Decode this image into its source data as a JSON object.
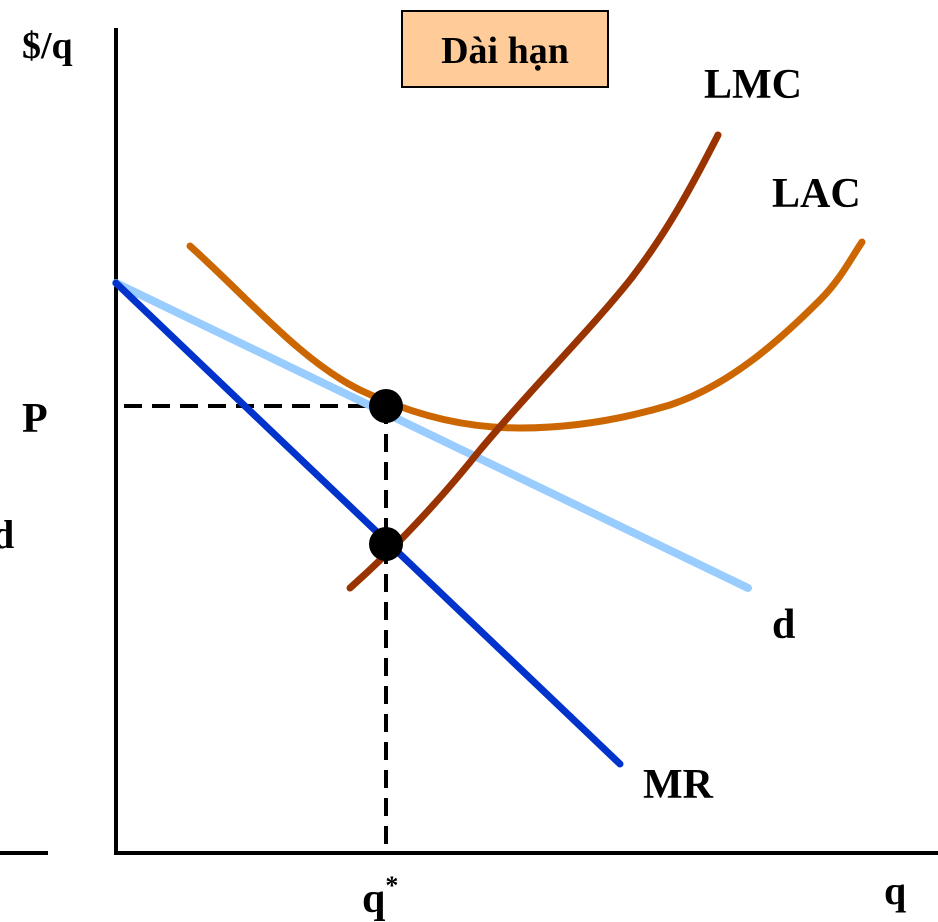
{
  "title": "Dài hạn",
  "labels": {
    "y_axis": "$/q",
    "x_axis": "q",
    "price": "P",
    "quantity": "q",
    "quantity_superscript": "*",
    "lmc": "LMC",
    "lac": "LAC",
    "demand": "d",
    "mr": "MR",
    "left_partial_d": "d"
  },
  "colors": {
    "background": "#ffffff",
    "axis": "#000000",
    "title_box_fill": "#ffcc99",
    "title_box_border": "#000000",
    "lmc": "#993300",
    "lac": "#cc6600",
    "demand": "#99ccff",
    "mr": "#0033cc",
    "dashed": "#000000",
    "points": "#000000"
  }
}
